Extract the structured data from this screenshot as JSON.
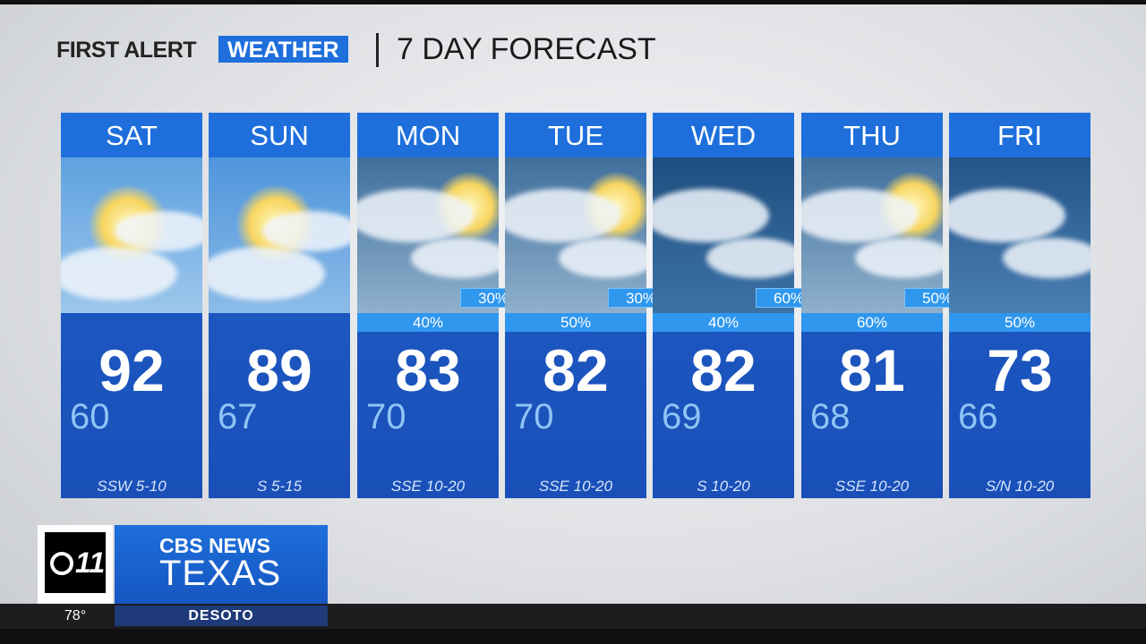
{
  "header": {
    "brand_first": "FIRST ALERT",
    "brand_second": "WEATHER",
    "title": "7 DAY FORECAST"
  },
  "days": [
    {
      "name": "SAT",
      "high": "92",
      "low": "60",
      "wind": "SSW 5-10"
    },
    {
      "name": "SUN",
      "high": "89",
      "low": "67",
      "wind": "S 5-15"
    },
    {
      "name": "MON",
      "precip": "40%",
      "night_precip": "30%",
      "high": "83",
      "low": "70",
      "wind": "SSE 10-20"
    },
    {
      "name": "TUE",
      "precip": "50%",
      "night_precip": "30%",
      "high": "82",
      "low": "70",
      "wind": "SSE 10-20"
    },
    {
      "name": "WED",
      "precip": "40%",
      "night_precip": "60%",
      "high": "82",
      "low": "69",
      "wind": "S 10-20"
    },
    {
      "name": "THU",
      "precip": "60%",
      "night_precip": "50%",
      "high": "81",
      "low": "68",
      "wind": "SSE 10-20"
    },
    {
      "name": "FRI",
      "precip": "50%",
      "high": "73",
      "low": "66",
      "wind": "S/N 10-20"
    }
  ],
  "footer": {
    "logo_number": "11",
    "network": "CBS NEWS",
    "region": "TEXAS",
    "temperature": "78°",
    "location": "DESOTO"
  }
}
